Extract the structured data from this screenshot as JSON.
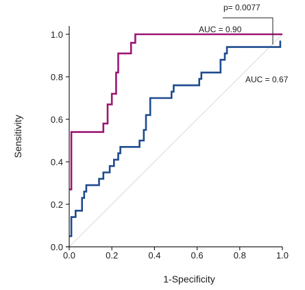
{
  "chart_data": {
    "type": "line",
    "title": "",
    "xlabel": "1-Specificity",
    "ylabel": "Sensitivity",
    "xlim": [
      0,
      1
    ],
    "ylim": [
      0,
      1
    ],
    "grid": false,
    "x_ticks": [
      "0.0",
      "0.2",
      "0.4",
      "0.6",
      "0.8",
      "1.0"
    ],
    "y_ticks": [
      "0.0",
      "0.2",
      "0.4",
      "0.6",
      "0.8",
      "1.0"
    ],
    "reference_line": {
      "x": [
        0,
        1
      ],
      "y": [
        0,
        1
      ],
      "color": "#cfcfcf"
    },
    "series": [
      {
        "color": "#9b1673",
        "annotation": "AUC = 0.90",
        "x": [
          0.0,
          0.0,
          0.01,
          0.01,
          0.16,
          0.16,
          0.18,
          0.18,
          0.2,
          0.2,
          0.22,
          0.22,
          0.23,
          0.23,
          0.29,
          0.29,
          0.31,
          0.31,
          1.0
        ],
        "y": [
          0.27,
          0.27,
          0.27,
          0.54,
          0.54,
          0.58,
          0.58,
          0.67,
          0.67,
          0.72,
          0.72,
          0.82,
          0.82,
          0.91,
          0.91,
          0.96,
          0.96,
          1.0,
          1.0
        ]
      },
      {
        "color": "#1f4b8f",
        "annotation": "AUC = 0.67",
        "x": [
          0.0,
          0.0,
          0.01,
          0.01,
          0.03,
          0.03,
          0.06,
          0.06,
          0.07,
          0.07,
          0.08,
          0.08,
          0.14,
          0.14,
          0.16,
          0.16,
          0.19,
          0.19,
          0.21,
          0.21,
          0.23,
          0.23,
          0.24,
          0.24,
          0.25,
          0.25,
          0.33,
          0.33,
          0.35,
          0.35,
          0.36,
          0.36,
          0.38,
          0.38,
          0.48,
          0.48,
          0.49,
          0.49,
          0.61,
          0.61,
          0.62,
          0.62,
          0.63,
          0.63,
          0.71,
          0.71,
          0.73,
          0.73,
          0.74,
          0.74,
          0.99,
          0.99
        ],
        "y": [
          0.05,
          0.05,
          0.05,
          0.14,
          0.14,
          0.17,
          0.17,
          0.23,
          0.23,
          0.26,
          0.26,
          0.29,
          0.29,
          0.32,
          0.32,
          0.35,
          0.35,
          0.38,
          0.38,
          0.41,
          0.41,
          0.44,
          0.44,
          0.47,
          0.47,
          0.47,
          0.47,
          0.5,
          0.5,
          0.55,
          0.55,
          0.62,
          0.62,
          0.7,
          0.7,
          0.73,
          0.73,
          0.76,
          0.76,
          0.79,
          0.79,
          0.82,
          0.82,
          0.82,
          0.82,
          0.88,
          0.88,
          0.91,
          0.91,
          0.94,
          0.94,
          0.97
        ]
      }
    ],
    "annotations": [
      {
        "text": "p= 0.0077",
        "type": "comparison-bracket"
      }
    ]
  }
}
